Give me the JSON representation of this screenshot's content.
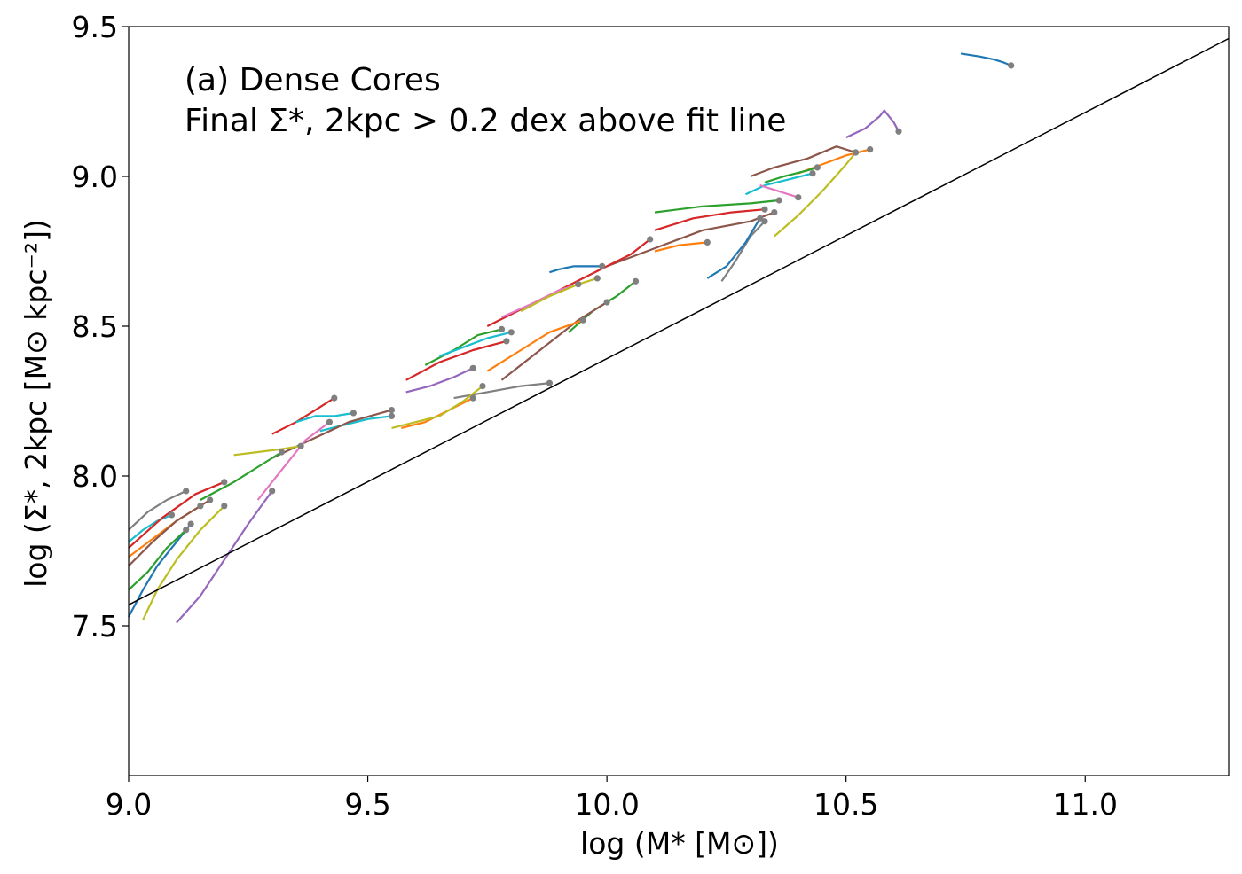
{
  "chart_data": {
    "type": "line",
    "title": "",
    "annotation_lines": [
      "(a) Dense Cores",
      "Final Σ*, 2kpc > 0.2 dex above fit line"
    ],
    "xlabel": "log (M* [M⊙])",
    "ylabel": "log (Σ*, 2kpc [M⊙ kpc⁻²])",
    "xlim": [
      9.0,
      11.3
    ],
    "ylim": [
      7.0,
      9.5
    ],
    "xticks": [
      9.0,
      9.5,
      10.0,
      10.5,
      11.0
    ],
    "xtick_labels": [
      "9.0",
      "9.5",
      "10.0",
      "10.5",
      "11.0"
    ],
    "yticks": [
      7.5,
      8.0,
      8.5,
      9.0,
      9.5
    ],
    "ytick_labels": [
      "7.5",
      "8.0",
      "8.5",
      "9.0",
      "9.5"
    ],
    "fit_line": {
      "name": "fit line",
      "color": "#000000",
      "x": [
        9.0,
        11.3
      ],
      "y": [
        7.57,
        9.46
      ]
    },
    "endpoint_color": "#7f7f7f",
    "series": [
      {
        "name": "track-1",
        "color": "#1f77b4",
        "x": [
          10.74,
          10.78,
          10.81,
          10.83,
          10.845
        ],
        "y": [
          9.41,
          9.4,
          9.39,
          9.38,
          9.37
        ]
      },
      {
        "name": "track-2",
        "color": "#9467bd",
        "x": [
          10.5,
          10.54,
          10.57,
          10.58,
          10.6,
          10.61
        ],
        "y": [
          9.13,
          9.16,
          9.2,
          9.22,
          9.18,
          9.15
        ]
      },
      {
        "name": "track-3",
        "color": "#8c564b",
        "x": [
          10.3,
          10.35,
          10.42,
          10.48,
          10.52
        ],
        "y": [
          9.0,
          9.03,
          9.06,
          9.1,
          9.08
        ]
      },
      {
        "name": "track-4",
        "color": "#ff7f0e",
        "x": [
          10.4,
          10.45,
          10.5,
          10.55
        ],
        "y": [
          9.01,
          9.04,
          9.07,
          9.09
        ]
      },
      {
        "name": "track-5",
        "color": "#bcbd22",
        "x": [
          10.35,
          10.4,
          10.45,
          10.5,
          10.52
        ],
        "y": [
          8.8,
          8.87,
          8.95,
          9.04,
          9.08
        ]
      },
      {
        "name": "track-6",
        "color": "#2ca02c",
        "x": [
          10.33,
          10.37,
          10.42,
          10.44
        ],
        "y": [
          8.98,
          9.0,
          9.02,
          9.03
        ]
      },
      {
        "name": "track-7",
        "color": "#17becf",
        "x": [
          10.29,
          10.33,
          10.38,
          10.43
        ],
        "y": [
          8.94,
          8.97,
          8.99,
          9.01
        ]
      },
      {
        "name": "track-8",
        "color": "#e377c2",
        "x": [
          10.32,
          10.36,
          10.4
        ],
        "y": [
          8.97,
          8.95,
          8.93
        ]
      },
      {
        "name": "track-9",
        "color": "#2ca02c",
        "x": [
          10.1,
          10.2,
          10.3,
          10.36
        ],
        "y": [
          8.88,
          8.9,
          8.91,
          8.92
        ]
      },
      {
        "name": "track-10",
        "color": "#7f7f7f",
        "x": [
          10.24,
          10.27,
          10.3,
          10.33
        ],
        "y": [
          8.65,
          8.72,
          8.8,
          8.85
        ]
      },
      {
        "name": "track-11",
        "color": "#1f77b4",
        "x": [
          10.21,
          10.25,
          10.29,
          10.32
        ],
        "y": [
          8.66,
          8.7,
          8.78,
          8.86
        ]
      },
      {
        "name": "track-12",
        "color": "#d62728",
        "x": [
          10.1,
          10.18,
          10.26,
          10.33
        ],
        "y": [
          8.82,
          8.86,
          8.88,
          8.89
        ]
      },
      {
        "name": "track-13",
        "color": "#8c564b",
        "x": [
          10.0,
          10.1,
          10.2,
          10.3,
          10.35
        ],
        "y": [
          8.7,
          8.76,
          8.82,
          8.85,
          8.88
        ]
      },
      {
        "name": "track-14",
        "color": "#ff7f0e",
        "x": [
          10.1,
          10.15,
          10.21
        ],
        "y": [
          8.75,
          8.77,
          8.78
        ]
      },
      {
        "name": "track-15",
        "color": "#1f77b4",
        "x": [
          9.88,
          9.9,
          9.93,
          9.96,
          9.99
        ],
        "y": [
          8.68,
          8.69,
          8.7,
          8.7,
          8.7
        ]
      },
      {
        "name": "track-16",
        "color": "#d62728",
        "x": [
          9.75,
          9.85,
          9.95,
          10.05,
          10.09
        ],
        "y": [
          8.5,
          8.58,
          8.66,
          8.74,
          8.79
        ]
      },
      {
        "name": "track-17",
        "color": "#e377c2",
        "x": [
          9.78,
          9.85,
          9.9,
          9.94
        ],
        "y": [
          8.53,
          8.58,
          8.62,
          8.64
        ]
      },
      {
        "name": "track-18",
        "color": "#bcbd22",
        "x": [
          9.82,
          9.88,
          9.94,
          9.98
        ],
        "y": [
          8.55,
          8.6,
          8.64,
          8.66
        ]
      },
      {
        "name": "track-19",
        "color": "#2ca02c",
        "x": [
          9.92,
          9.97,
          10.02,
          10.06
        ],
        "y": [
          8.48,
          8.55,
          8.6,
          8.65
        ]
      },
      {
        "name": "track-20",
        "color": "#8c564b",
        "x": [
          9.78,
          9.86,
          9.94,
          10.0
        ],
        "y": [
          8.32,
          8.42,
          8.52,
          8.58
        ]
      },
      {
        "name": "track-21",
        "color": "#ff7f0e",
        "x": [
          9.75,
          9.82,
          9.88,
          9.95
        ],
        "y": [
          8.35,
          8.42,
          8.48,
          8.52
        ]
      },
      {
        "name": "track-22",
        "color": "#2ca02c",
        "x": [
          9.62,
          9.68,
          9.73,
          9.78
        ],
        "y": [
          8.37,
          8.42,
          8.47,
          8.49
        ]
      },
      {
        "name": "track-23",
        "color": "#17becf",
        "x": [
          9.65,
          9.7,
          9.75,
          9.8
        ],
        "y": [
          8.4,
          8.43,
          8.46,
          8.48
        ]
      },
      {
        "name": "track-24",
        "color": "#7f7f7f",
        "x": [
          9.68,
          9.75,
          9.82,
          9.88
        ],
        "y": [
          8.26,
          8.28,
          8.3,
          8.31
        ]
      },
      {
        "name": "track-25",
        "color": "#d62728",
        "x": [
          9.58,
          9.65,
          9.72,
          9.79
        ],
        "y": [
          8.32,
          8.38,
          8.42,
          8.45
        ]
      },
      {
        "name": "track-26",
        "color": "#ff7f0e",
        "x": [
          9.57,
          9.62,
          9.67,
          9.72
        ],
        "y": [
          8.16,
          8.18,
          8.22,
          8.26
        ]
      },
      {
        "name": "track-27",
        "color": "#bcbd22",
        "x": [
          9.55,
          9.6,
          9.65,
          9.7,
          9.74
        ],
        "y": [
          8.16,
          8.18,
          8.2,
          8.25,
          8.3
        ]
      },
      {
        "name": "track-28",
        "color": "#9467bd",
        "x": [
          9.58,
          9.63,
          9.68,
          9.72
        ],
        "y": [
          8.28,
          8.3,
          8.33,
          8.36
        ]
      },
      {
        "name": "track-29",
        "color": "#17becf",
        "x": [
          9.4,
          9.45,
          9.5,
          9.55
        ],
        "y": [
          8.15,
          8.17,
          8.19,
          8.2
        ]
      },
      {
        "name": "track-30",
        "color": "#d62728",
        "x": [
          9.3,
          9.35,
          9.4,
          9.43
        ],
        "y": [
          8.14,
          8.18,
          8.23,
          8.26
        ]
      },
      {
        "name": "track-31",
        "color": "#8c564b",
        "x": [
          9.3,
          9.38,
          9.46,
          9.55
        ],
        "y": [
          8.06,
          8.12,
          8.18,
          8.22
        ]
      },
      {
        "name": "track-32",
        "color": "#17becf",
        "x": [
          9.35,
          9.39,
          9.43,
          9.47
        ],
        "y": [
          8.18,
          8.2,
          8.2,
          8.21
        ]
      },
      {
        "name": "track-33",
        "color": "#bcbd22",
        "x": [
          9.22,
          9.27,
          9.32,
          9.36
        ],
        "y": [
          8.07,
          8.08,
          8.09,
          8.1
        ]
      },
      {
        "name": "track-34",
        "color": "#2ca02c",
        "x": [
          9.15,
          9.22,
          9.28,
          9.32
        ],
        "y": [
          7.92,
          7.98,
          8.04,
          8.08
        ]
      },
      {
        "name": "track-35",
        "color": "#e377c2",
        "x": [
          9.27,
          9.32,
          9.37,
          9.42
        ],
        "y": [
          7.92,
          8.02,
          8.12,
          8.18
        ]
      },
      {
        "name": "track-36",
        "color": "#9467bd",
        "x": [
          9.1,
          9.15,
          9.2,
          9.25,
          9.3
        ],
        "y": [
          7.51,
          7.6,
          7.72,
          7.84,
          7.95
        ]
      },
      {
        "name": "track-37",
        "color": "#bcbd22",
        "x": [
          9.03,
          9.06,
          9.1,
          9.15,
          9.2
        ],
        "y": [
          7.52,
          7.62,
          7.72,
          7.82,
          7.9
        ]
      },
      {
        "name": "track-38",
        "color": "#1f77b4",
        "x": [
          9.0,
          9.03,
          9.06,
          9.1,
          9.13
        ],
        "y": [
          7.53,
          7.62,
          7.7,
          7.78,
          7.84
        ]
      },
      {
        "name": "track-39",
        "color": "#2ca02c",
        "x": [
          9.0,
          9.04,
          9.08,
          9.12
        ],
        "y": [
          7.62,
          7.68,
          7.76,
          7.82
        ]
      },
      {
        "name": "track-40",
        "color": "#7f7f7f",
        "x": [
          9.0,
          9.04,
          9.08,
          9.12
        ],
        "y": [
          7.82,
          7.88,
          7.92,
          7.95
        ]
      },
      {
        "name": "track-41",
        "color": "#17becf",
        "x": [
          9.0,
          9.03,
          9.06,
          9.09
        ],
        "y": [
          7.78,
          7.82,
          7.85,
          7.87
        ]
      },
      {
        "name": "track-42",
        "color": "#ff7f0e",
        "x": [
          9.0,
          9.05,
          9.1,
          9.15
        ],
        "y": [
          7.73,
          7.79,
          7.85,
          7.9
        ]
      },
      {
        "name": "track-43",
        "color": "#d62728",
        "x": [
          9.0,
          9.07,
          9.14,
          9.2
        ],
        "y": [
          7.76,
          7.86,
          7.94,
          7.98
        ]
      },
      {
        "name": "track-44",
        "color": "#8c564b",
        "x": [
          9.0,
          9.05,
          9.1,
          9.17
        ],
        "y": [
          7.7,
          7.78,
          7.85,
          7.92
        ]
      }
    ]
  }
}
